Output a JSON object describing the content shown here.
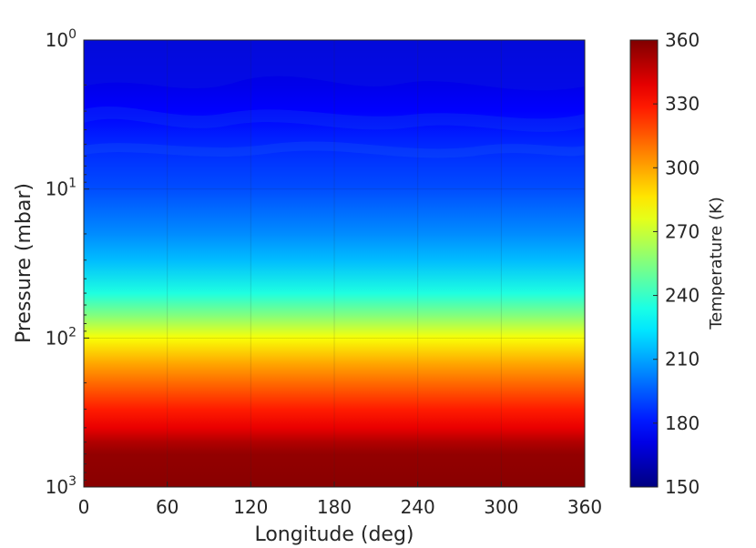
{
  "chart_data": {
    "type": "heatmap",
    "title": "",
    "xlabel": "Longitude (deg)",
    "ylabel": "Pressure (mbar)",
    "x_range": [
      0,
      360
    ],
    "x_ticks": [
      0,
      60,
      120,
      180,
      240,
      300,
      360
    ],
    "y_scale": "log",
    "y_direction": "reversed",
    "y_range": [
      1,
      1000
    ],
    "y_ticks": [
      {
        "value": 1,
        "base": "10",
        "exp": "0"
      },
      {
        "value": 10,
        "base": "10",
        "exp": "1"
      },
      {
        "value": 100,
        "base": "10",
        "exp": "2"
      },
      {
        "value": 1000,
        "base": "10",
        "exp": "3"
      }
    ],
    "grid": true,
    "colormap": "jet",
    "colorbar": {
      "label": "Temperature (K)",
      "range": [
        150,
        360
      ],
      "ticks": [
        150,
        180,
        210,
        240,
        270,
        300,
        330,
        360
      ]
    },
    "temperature_profile": [
      {
        "pressure": 1,
        "temperature": 168
      },
      {
        "pressure": 2,
        "temperature": 172
      },
      {
        "pressure": 3,
        "temperature": 176
      },
      {
        "pressure": 5,
        "temperature": 184
      },
      {
        "pressure": 10,
        "temperature": 192
      },
      {
        "pressure": 20,
        "temperature": 205
      },
      {
        "pressure": 30,
        "temperature": 215
      },
      {
        "pressure": 50,
        "temperature": 235
      },
      {
        "pressure": 70,
        "temperature": 255
      },
      {
        "pressure": 100,
        "temperature": 280
      },
      {
        "pressure": 150,
        "temperature": 300
      },
      {
        "pressure": 200,
        "temperature": 312
      },
      {
        "pressure": 300,
        "temperature": 328
      },
      {
        "pressure": 400,
        "temperature": 338
      },
      {
        "pressure": 500,
        "temperature": 350
      },
      {
        "pressure": 600,
        "temperature": 356
      },
      {
        "pressure": 1000,
        "temperature": 358
      }
    ]
  }
}
